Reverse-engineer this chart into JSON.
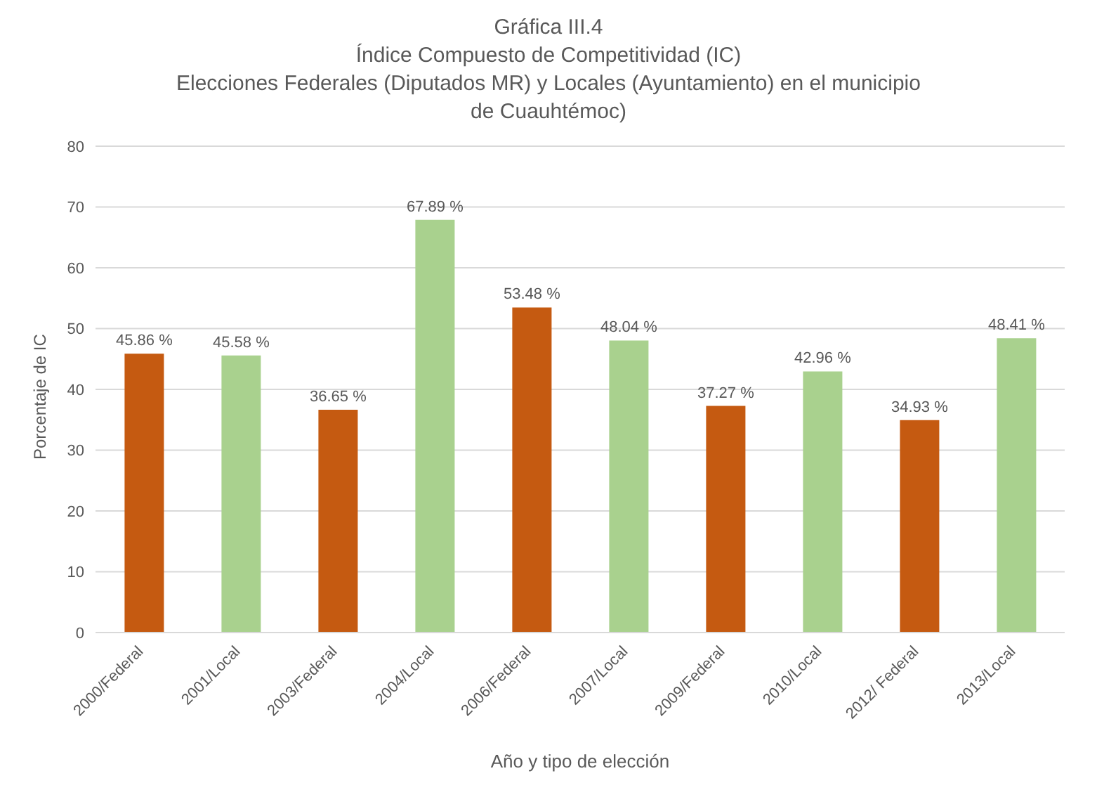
{
  "chart_data": {
    "type": "bar",
    "title": "Gráfica III.4\nÍndice Compuesto de Competitividad (IC)\nElecciones Federales (Diputados MR) y Locales (Ayuntamiento) en el municipio\nde Cuauhtémoc)",
    "xlabel": "Año y tipo de elección",
    "ylabel": "Porcentaje de IC",
    "categories": [
      "2000/Federal",
      "2001/Local",
      "2003/Federal",
      "2004/Local",
      "2006/Federal",
      "2007/Local",
      "2009/Federal",
      "2010/Local",
      "2012/ Federal",
      "2013/Local"
    ],
    "values": [
      45.86,
      45.58,
      36.65,
      67.89,
      53.48,
      48.04,
      37.27,
      42.96,
      34.93,
      48.41
    ],
    "colors": [
      "#c55a11",
      "#a9d18e",
      "#c55a11",
      "#a9d18e",
      "#c55a11",
      "#a9d18e",
      "#c55a11",
      "#a9d18e",
      "#c55a11",
      "#a9d18e"
    ],
    "value_labels": [
      "45.86 %",
      "45.58 %",
      "36.65 %",
      "67.89 %",
      "53.48 %",
      "48.04 %",
      "37.27 %",
      "42.96 %",
      "34.93 %",
      "48.41 %"
    ],
    "ylim": [
      0,
      80
    ],
    "yticks": [
      0,
      10,
      20,
      30,
      40,
      50,
      60,
      70,
      80
    ],
    "grid": "y",
    "legend": false
  }
}
